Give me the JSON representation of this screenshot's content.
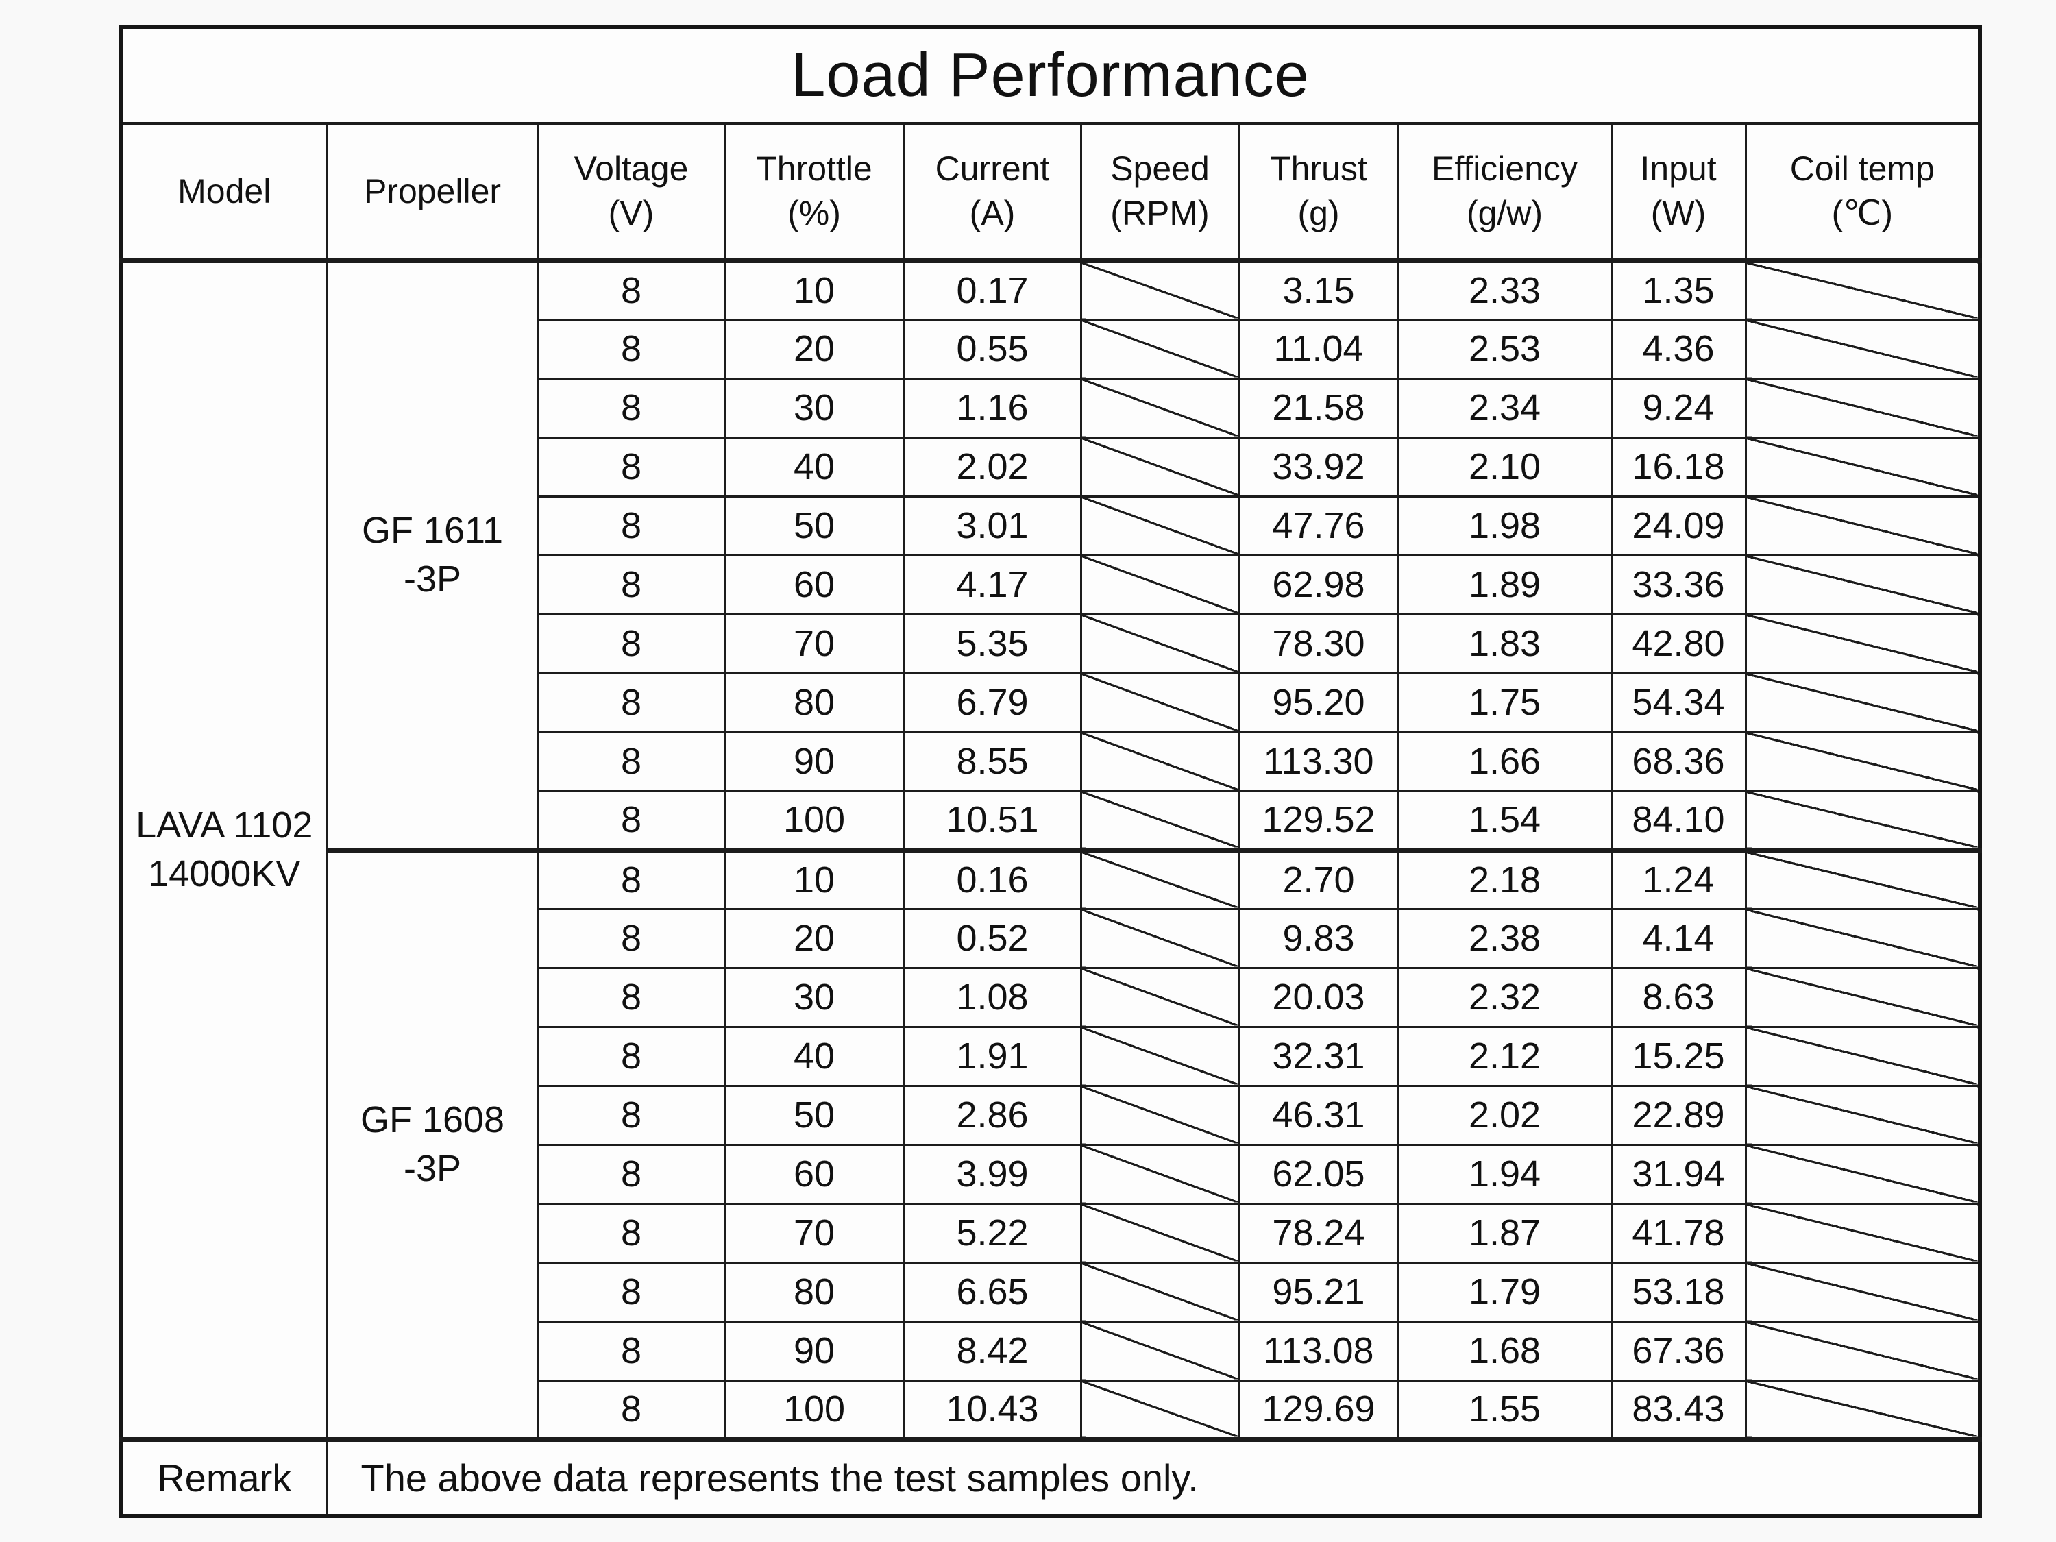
{
  "title": "Load Performance",
  "columns": [
    {
      "name": "Model",
      "unit": ""
    },
    {
      "name": "Propeller",
      "unit": ""
    },
    {
      "name": "Voltage",
      "unit": "(V)"
    },
    {
      "name": "Throttle",
      "unit": "(%)"
    },
    {
      "name": "Current",
      "unit": "(A)"
    },
    {
      "name": "Speed",
      "unit": "(RPM)"
    },
    {
      "name": "Thrust",
      "unit": "(g)"
    },
    {
      "name": "Efficiency",
      "unit": "(g/w)"
    },
    {
      "name": "Input",
      "unit": "(W)"
    },
    {
      "name": "Coil temp",
      "unit": "(℃)"
    }
  ],
  "model": {
    "line1": "LAVA 1102",
    "line2": "14000KV"
  },
  "row_fields": [
    "voltage_v",
    "throttle_pct",
    "current_a",
    "speed_rpm",
    "thrust_g",
    "efficiency_g_per_w",
    "input_w",
    "coil_temp_c"
  ],
  "no_data_marker": "diagonal-slash",
  "groups": [
    {
      "propeller": {
        "line1": "GF 1611",
        "line2": "-3P"
      },
      "rows": [
        [
          "8",
          "10",
          "0.17",
          null,
          "3.15",
          "2.33",
          "1.35",
          null
        ],
        [
          "8",
          "20",
          "0.55",
          null,
          "11.04",
          "2.53",
          "4.36",
          null
        ],
        [
          "8",
          "30",
          "1.16",
          null,
          "21.58",
          "2.34",
          "9.24",
          null
        ],
        [
          "8",
          "40",
          "2.02",
          null,
          "33.92",
          "2.10",
          "16.18",
          null
        ],
        [
          "8",
          "50",
          "3.01",
          null,
          "47.76",
          "1.98",
          "24.09",
          null
        ],
        [
          "8",
          "60",
          "4.17",
          null,
          "62.98",
          "1.89",
          "33.36",
          null
        ],
        [
          "8",
          "70",
          "5.35",
          null,
          "78.30",
          "1.83",
          "42.80",
          null
        ],
        [
          "8",
          "80",
          "6.79",
          null,
          "95.20",
          "1.75",
          "54.34",
          null
        ],
        [
          "8",
          "90",
          "8.55",
          null,
          "113.30",
          "1.66",
          "68.36",
          null
        ],
        [
          "8",
          "100",
          "10.51",
          null,
          "129.52",
          "1.54",
          "84.10",
          null
        ]
      ]
    },
    {
      "propeller": {
        "line1": "GF 1608",
        "line2": "-3P"
      },
      "rows": [
        [
          "8",
          "10",
          "0.16",
          null,
          "2.70",
          "2.18",
          "1.24",
          null
        ],
        [
          "8",
          "20",
          "0.52",
          null,
          "9.83",
          "2.38",
          "4.14",
          null
        ],
        [
          "8",
          "30",
          "1.08",
          null,
          "20.03",
          "2.32",
          "8.63",
          null
        ],
        [
          "8",
          "40",
          "1.91",
          null,
          "32.31",
          "2.12",
          "15.25",
          null
        ],
        [
          "8",
          "50",
          "2.86",
          null,
          "46.31",
          "2.02",
          "22.89",
          null
        ],
        [
          "8",
          "60",
          "3.99",
          null,
          "62.05",
          "1.94",
          "31.94",
          null
        ],
        [
          "8",
          "70",
          "5.22",
          null,
          "78.24",
          "1.87",
          "41.78",
          null
        ],
        [
          "8",
          "80",
          "6.65",
          null,
          "95.21",
          "1.79",
          "53.18",
          null
        ],
        [
          "8",
          "90",
          "8.42",
          null,
          "113.08",
          "1.68",
          "67.36",
          null
        ],
        [
          "8",
          "100",
          "10.43",
          null,
          "129.69",
          "1.55",
          "83.43",
          null
        ]
      ]
    }
  ],
  "remark": {
    "label": "Remark",
    "text": "The above data represents the test samples only."
  },
  "colors": {
    "border": "#1c1c1c",
    "text": "#111111",
    "background": "#fdfdfd"
  }
}
